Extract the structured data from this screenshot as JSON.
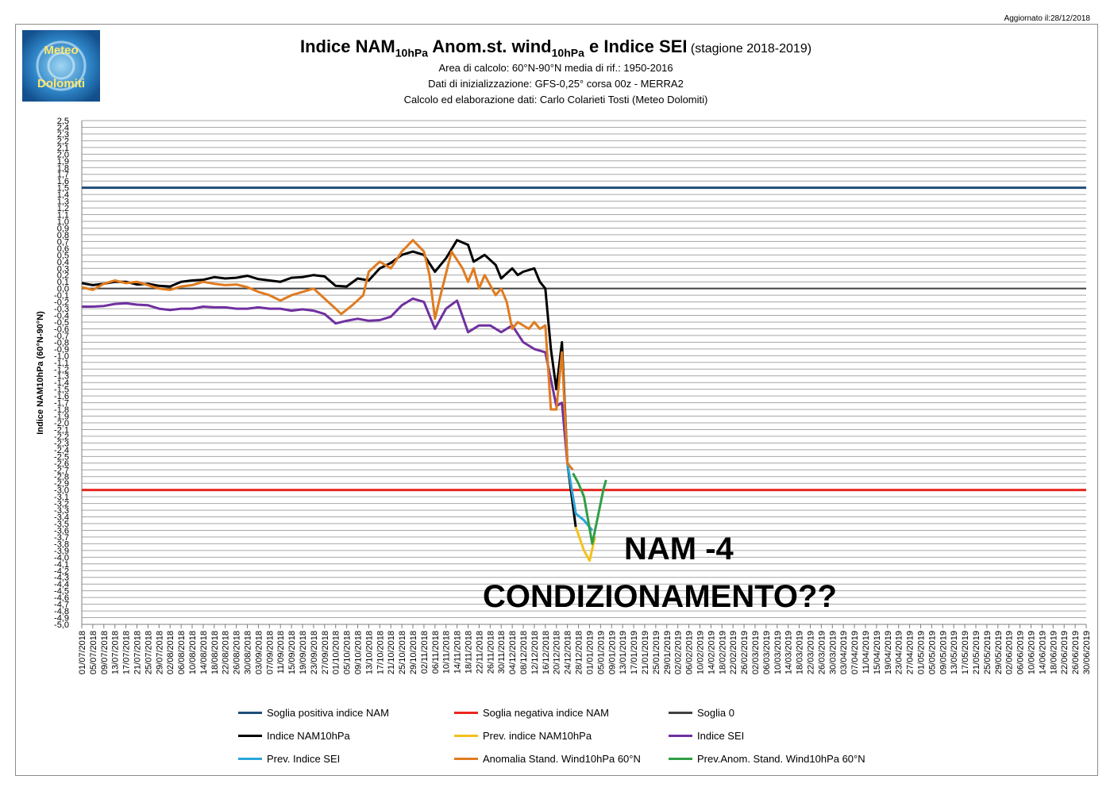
{
  "updated": "Aggiornato il:28/12/2018",
  "logo": {
    "line1": "Meteo",
    "line2": "Dolomiti"
  },
  "title": {
    "part1": "Indice NAM",
    "sub1": "10hPa",
    "part2": " Anom.st. wind",
    "sub2": "10hPa",
    "part3": " e Indice SEI",
    "season": " (stagione 2018-2019)"
  },
  "subtitles": [
    "Area di calcolo: 60°N-90°N media di rif.: 1950-2016",
    "Dati di inizializzazione: GFS-0,25° corsa 00z - MERRA2",
    "Calcolo ed elaborazione dati: Carlo Colarieti Tosti (Meteo Dolomiti)"
  ],
  "annotations": {
    "nam": "NAM -4",
    "cond": "CONDIZIONAMENTO??"
  },
  "colors": {
    "pos_threshold": "#1f4e79",
    "neg_threshold": "#e8261d",
    "zero": "#404040",
    "nam": "#000000",
    "nam_prev": "#f2c21b",
    "sei": "#7030a0",
    "sei_prev": "#2aa6d9",
    "wind": "#e07b1f",
    "wind_prev": "#2e9e46"
  },
  "chart_data": {
    "type": "line",
    "ylabel": "Indice NAM10hPa (60°N-90°N)",
    "ylim": [
      -5.0,
      2.5
    ],
    "grid": true,
    "legend_position": "bottom",
    "y_ticks": [
      "2,5",
      "2,4",
      "2,3",
      "2,2",
      "2,1",
      "2,0",
      "1,9",
      "1,8",
      "1,7",
      "1,6",
      "1,5",
      "1,4",
      "1,3",
      "1,2",
      "1,1",
      "1,0",
      "0,9",
      "0,8",
      "0,7",
      "0,6",
      "0,5",
      "0,4",
      "0,3",
      "0,2",
      "0,1",
      "0,0",
      "-0,1",
      "-0,2",
      "-0,3",
      "-0,4",
      "-0,5",
      "-0,6",
      "-0,7",
      "-0,8",
      "-0,9",
      "-1,0",
      "-1,1",
      "-1,2",
      "-1,3",
      "-1,4",
      "-1,5",
      "-1,6",
      "-1,7",
      "-1,8",
      "-1,9",
      "-2,0",
      "-2,1",
      "-2,2",
      "-2,3",
      "-2,4",
      "-2,5",
      "-2,6",
      "-2,7",
      "-2,8",
      "-2,9",
      "-3,0",
      "-3,1",
      "-3,2",
      "-3,3",
      "-3,4",
      "-3,5",
      "-3,6",
      "-3,7",
      "-3,8",
      "-3,9",
      "-4,0",
      "-4,1",
      "-4,2",
      "-4,3",
      "-4,4",
      "-4,5",
      "-4,6",
      "-4,7",
      "-4,8",
      "-4,9",
      "-5,0"
    ],
    "x_labels": [
      "01/07/2018",
      "05/07/2018",
      "09/07/2018",
      "13/07/2018",
      "17/07/2018",
      "21/07/2018",
      "25/07/2018",
      "29/07/2018",
      "02/08/2018",
      "06/08/2018",
      "10/08/2018",
      "14/08/2018",
      "18/08/2018",
      "22/08/2018",
      "26/08/2018",
      "30/08/2018",
      "03/09/2018",
      "07/09/2018",
      "11/09/2018",
      "15/09/2018",
      "19/09/2018",
      "23/09/2018",
      "27/09/2018",
      "01/10/2018",
      "05/10/2018",
      "09/10/2018",
      "13/10/2018",
      "17/10/2018",
      "21/10/2018",
      "25/10/2018",
      "29/10/2018",
      "02/11/2018",
      "06/11/2018",
      "10/11/2018",
      "14/11/2018",
      "18/11/2018",
      "22/11/2018",
      "26/11/2018",
      "30/11/2018",
      "04/12/2018",
      "08/12/2018",
      "12/12/2018",
      "16/12/2018",
      "20/12/2018",
      "24/12/2018",
      "28/12/2018",
      "01/01/2019",
      "05/01/2019",
      "09/01/2019",
      "13/01/2019",
      "17/01/2019",
      "21/01/2019",
      "25/01/2019",
      "29/01/2019",
      "02/02/2019",
      "06/02/2019",
      "10/02/2019",
      "14/02/2019",
      "18/02/2019",
      "22/02/2019",
      "26/02/2019",
      "02/03/2019",
      "06/03/2019",
      "10/03/2019",
      "14/03/2019",
      "18/03/2019",
      "22/03/2019",
      "26/03/2019",
      "30/03/2019",
      "03/04/2019",
      "07/04/2019",
      "11/04/2019",
      "15/04/2019",
      "19/04/2019",
      "23/04/2019",
      "27/04/2019",
      "01/05/2019",
      "05/05/2019",
      "09/05/2019",
      "13/05/2019",
      "17/05/2019",
      "21/05/2019",
      "25/05/2019",
      "29/05/2019",
      "02/06/2019",
      "06/06/2019",
      "10/06/2019",
      "14/06/2019",
      "18/06/2019",
      "22/06/2019",
      "26/06/2019",
      "30/06/2019"
    ],
    "thresholds": [
      {
        "name": "Soglia positiva indice NAM",
        "value": 1.5
      },
      {
        "name": "Soglia negativa indice NAM",
        "value": -3.0
      },
      {
        "name": "Soglia 0",
        "value": 0.0
      }
    ],
    "series": [
      {
        "key": "nam",
        "name": "Indice NAM10hPa",
        "points": [
          [
            "01/07/2018",
            0.08
          ],
          [
            "05/07/2018",
            0.05
          ],
          [
            "09/07/2018",
            0.07
          ],
          [
            "13/07/2018",
            0.1
          ],
          [
            "17/07/2018",
            0.1
          ],
          [
            "21/07/2018",
            0.06
          ],
          [
            "25/07/2018",
            0.07
          ],
          [
            "29/07/2018",
            0.04
          ],
          [
            "02/08/2018",
            0.03
          ],
          [
            "06/08/2018",
            0.1
          ],
          [
            "10/08/2018",
            0.12
          ],
          [
            "14/08/2018",
            0.13
          ],
          [
            "18/08/2018",
            0.17
          ],
          [
            "22/08/2018",
            0.15
          ],
          [
            "26/08/2018",
            0.16
          ],
          [
            "30/08/2018",
            0.19
          ],
          [
            "03/09/2018",
            0.14
          ],
          [
            "07/09/2018",
            0.12
          ],
          [
            "11/09/2018",
            0.1
          ],
          [
            "15/09/2018",
            0.16
          ],
          [
            "19/09/2018",
            0.17
          ],
          [
            "23/09/2018",
            0.2
          ],
          [
            "27/09/2018",
            0.18
          ],
          [
            "01/10/2018",
            0.04
          ],
          [
            "05/10/2018",
            0.03
          ],
          [
            "09/10/2018",
            0.15
          ],
          [
            "13/10/2018",
            0.12
          ],
          [
            "17/10/2018",
            0.3
          ],
          [
            "21/10/2018",
            0.38
          ],
          [
            "25/10/2018",
            0.5
          ],
          [
            "29/10/2018",
            0.55
          ],
          [
            "02/11/2018",
            0.5
          ],
          [
            "06/11/2018",
            0.25
          ],
          [
            "10/11/2018",
            0.45
          ],
          [
            "14/11/2018",
            0.72
          ],
          [
            "18/11/2018",
            0.65
          ],
          [
            "20/11/2018",
            0.4
          ],
          [
            "24/11/2018",
            0.5
          ],
          [
            "28/11/2018",
            0.35
          ],
          [
            "30/11/2018",
            0.15
          ],
          [
            "04/12/2018",
            0.3
          ],
          [
            "06/12/2018",
            0.2
          ],
          [
            "08/12/2018",
            0.25
          ],
          [
            "12/12/2018",
            0.3
          ],
          [
            "14/12/2018",
            0.1
          ],
          [
            "16/12/2018",
            0.0
          ],
          [
            "18/12/2018",
            -0.9
          ],
          [
            "20/12/2018",
            -1.5
          ],
          [
            "22/12/2018",
            -0.8
          ],
          [
            "24/12/2018",
            -2.6
          ],
          [
            "27/12/2018",
            -3.55
          ]
        ]
      },
      {
        "key": "nam_prev",
        "name": "Prev. indice NAM10hPa",
        "points": [
          [
            "27/12/2018",
            -3.55
          ],
          [
            "30/12/2018",
            -3.9
          ],
          [
            "01/01/2019",
            -4.05
          ],
          [
            "03/01/2019",
            -3.7
          ]
        ]
      },
      {
        "key": "sei",
        "name": "Indice SEI",
        "points": [
          [
            "01/07/2018",
            -0.27
          ],
          [
            "05/07/2018",
            -0.27
          ],
          [
            "09/07/2018",
            -0.26
          ],
          [
            "13/07/2018",
            -0.23
          ],
          [
            "17/07/2018",
            -0.22
          ],
          [
            "21/07/2018",
            -0.24
          ],
          [
            "25/07/2018",
            -0.25
          ],
          [
            "29/07/2018",
            -0.3
          ],
          [
            "02/08/2018",
            -0.32
          ],
          [
            "06/08/2018",
            -0.3
          ],
          [
            "10/08/2018",
            -0.3
          ],
          [
            "14/08/2018",
            -0.27
          ],
          [
            "18/08/2018",
            -0.28
          ],
          [
            "22/08/2018",
            -0.28
          ],
          [
            "26/08/2018",
            -0.3
          ],
          [
            "30/08/2018",
            -0.3
          ],
          [
            "03/09/2018",
            -0.28
          ],
          [
            "07/09/2018",
            -0.3
          ],
          [
            "11/09/2018",
            -0.3
          ],
          [
            "15/09/2018",
            -0.33
          ],
          [
            "19/09/2018",
            -0.31
          ],
          [
            "23/09/2018",
            -0.33
          ],
          [
            "27/09/2018",
            -0.38
          ],
          [
            "01/10/2018",
            -0.52
          ],
          [
            "05/10/2018",
            -0.48
          ],
          [
            "09/10/2018",
            -0.45
          ],
          [
            "13/10/2018",
            -0.48
          ],
          [
            "17/10/2018",
            -0.47
          ],
          [
            "21/10/2018",
            -0.42
          ],
          [
            "25/10/2018",
            -0.25
          ],
          [
            "29/10/2018",
            -0.15
          ],
          [
            "02/11/2018",
            -0.2
          ],
          [
            "06/11/2018",
            -0.6
          ],
          [
            "10/11/2018",
            -0.3
          ],
          [
            "14/11/2018",
            -0.18
          ],
          [
            "18/11/2018",
            -0.65
          ],
          [
            "22/11/2018",
            -0.55
          ],
          [
            "26/11/2018",
            -0.55
          ],
          [
            "30/11/2018",
            -0.65
          ],
          [
            "04/12/2018",
            -0.55
          ],
          [
            "08/12/2018",
            -0.8
          ],
          [
            "12/12/2018",
            -0.9
          ],
          [
            "16/12/2018",
            -0.95
          ],
          [
            "20/12/2018",
            -1.75
          ],
          [
            "22/12/2018",
            -1.7
          ],
          [
            "24/12/2018",
            -2.6
          ]
        ]
      },
      {
        "key": "sei_prev",
        "name": "Prev. Indice SEI",
        "points": [
          [
            "24/12/2018",
            -2.6
          ],
          [
            "27/12/2018",
            -3.35
          ],
          [
            "30/12/2018",
            -3.45
          ],
          [
            "02/01/2019",
            -3.6
          ]
        ]
      },
      {
        "key": "wind",
        "name": "Anomalia Stand. Wind10hPa 60°N",
        "points": [
          [
            "01/07/2018",
            0.02
          ],
          [
            "05/07/2018",
            -0.02
          ],
          [
            "09/07/2018",
            0.07
          ],
          [
            "13/07/2018",
            0.12
          ],
          [
            "17/07/2018",
            0.08
          ],
          [
            "21/07/2018",
            0.1
          ],
          [
            "25/07/2018",
            0.05
          ],
          [
            "29/07/2018",
            0.0
          ],
          [
            "02/08/2018",
            -0.02
          ],
          [
            "06/08/2018",
            0.03
          ],
          [
            "10/08/2018",
            0.05
          ],
          [
            "14/08/2018",
            0.1
          ],
          [
            "18/08/2018",
            0.07
          ],
          [
            "22/08/2018",
            0.05
          ],
          [
            "26/08/2018",
            0.06
          ],
          [
            "30/08/2018",
            0.02
          ],
          [
            "03/09/2018",
            -0.05
          ],
          [
            "07/09/2018",
            -0.1
          ],
          [
            "11/09/2018",
            -0.18
          ],
          [
            "15/09/2018",
            -0.1
          ],
          [
            "19/09/2018",
            -0.05
          ],
          [
            "23/09/2018",
            0.0
          ],
          [
            "27/09/2018",
            -0.15
          ],
          [
            "01/10/2018",
            -0.3
          ],
          [
            "03/10/2018",
            -0.38
          ],
          [
            "07/10/2018",
            -0.25
          ],
          [
            "11/10/2018",
            -0.1
          ],
          [
            "13/10/2018",
            0.25
          ],
          [
            "17/10/2018",
            0.4
          ],
          [
            "21/10/2018",
            0.3
          ],
          [
            "25/10/2018",
            0.55
          ],
          [
            "29/10/2018",
            0.72
          ],
          [
            "02/11/2018",
            0.55
          ],
          [
            "04/11/2018",
            0.2
          ],
          [
            "06/11/2018",
            -0.45
          ],
          [
            "08/11/2018",
            -0.1
          ],
          [
            "12/11/2018",
            0.55
          ],
          [
            "16/11/2018",
            0.3
          ],
          [
            "18/11/2018",
            0.1
          ],
          [
            "20/11/2018",
            0.3
          ],
          [
            "22/11/2018",
            0.0
          ],
          [
            "24/11/2018",
            0.2
          ],
          [
            "28/11/2018",
            -0.1
          ],
          [
            "30/11/2018",
            0.0
          ],
          [
            "02/12/2018",
            -0.2
          ],
          [
            "04/12/2018",
            -0.6
          ],
          [
            "06/12/2018",
            -0.5
          ],
          [
            "10/12/2018",
            -0.6
          ],
          [
            "12/12/2018",
            -0.5
          ],
          [
            "14/12/2018",
            -0.6
          ],
          [
            "16/12/2018",
            -0.55
          ],
          [
            "18/12/2018",
            -1.8
          ],
          [
            "20/12/2018",
            -1.8
          ],
          [
            "22/12/2018",
            -0.95
          ],
          [
            "24/12/2018",
            -2.6
          ],
          [
            "26/12/2018",
            -2.7
          ]
        ]
      },
      {
        "key": "wind_prev",
        "name": "Prev.Anom. Stand. Wind10hPa 60°N",
        "points": [
          [
            "26/12/2018",
            -2.75
          ],
          [
            "28/12/2018",
            -2.9
          ],
          [
            "30/12/2018",
            -3.1
          ],
          [
            "02/01/2019",
            -3.8
          ],
          [
            "04/01/2019",
            -3.4
          ],
          [
            "06/01/2019",
            -3.0
          ],
          [
            "07/01/2019",
            -2.85
          ]
        ]
      }
    ]
  },
  "legend": [
    {
      "key": "pos_threshold",
      "label": "Soglia positiva indice NAM"
    },
    {
      "key": "neg_threshold",
      "label": "Soglia negativa indice NAM"
    },
    {
      "key": "zero",
      "label": "Soglia 0"
    },
    {
      "key": "nam",
      "label": "Indice NAM10hPa"
    },
    {
      "key": "nam_prev",
      "label": "Prev. indice NAM10hPa"
    },
    {
      "key": "sei",
      "label": "Indice SEI"
    },
    {
      "key": "sei_prev",
      "label": "Prev. Indice SEI"
    },
    {
      "key": "wind",
      "label": "Anomalia Stand. Wind10hPa 60°N"
    },
    {
      "key": "wind_prev",
      "label": "Prev.Anom. Stand. Wind10hPa 60°N"
    }
  ]
}
